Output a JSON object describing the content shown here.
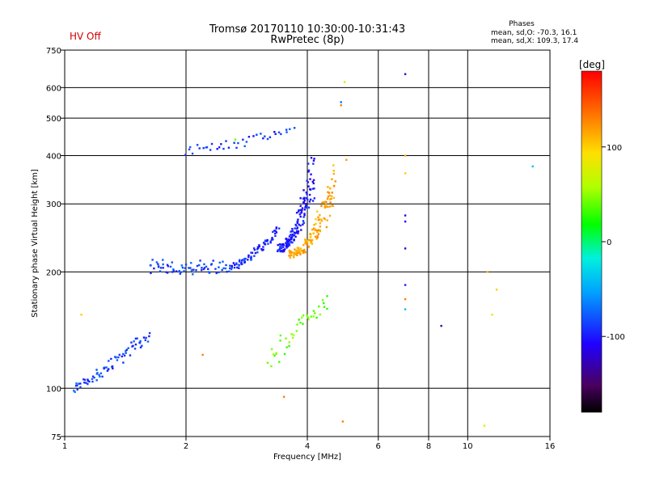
{
  "title_line1": "Tromsø 20170110 10:30:00-10:31:43",
  "title_line2": "RwPretec (8p)",
  "hv_status": "HV Off",
  "stats": {
    "heading": "Phases",
    "line_o": "mean, sd,O: -70.3, 16.1",
    "line_x": "mean, sd,X: 109.3, 17.4"
  },
  "colors": {
    "hv_status": "#d00000",
    "grid": "#000000",
    "axes": "#000000"
  },
  "chart_data": {
    "type": "scatter",
    "xlabel": "Frequency [MHz]",
    "ylabel": "Stationary phase Virtual Height [km]",
    "xscale": "log",
    "yscale": "log",
    "xlim": [
      1,
      16
    ],
    "ylim": [
      75,
      750
    ],
    "x_ticks": [
      1,
      2,
      4,
      6,
      8,
      10,
      16
    ],
    "y_ticks": [
      75,
      100,
      200,
      300,
      400,
      500,
      600,
      750
    ],
    "x_grid": [
      2,
      4,
      6,
      8,
      10
    ],
    "y_grid": [
      100,
      200,
      300,
      400,
      500,
      600
    ],
    "colorbar": {
      "label": "[deg]",
      "min": -180,
      "max": 180,
      "ticks": [
        100,
        0,
        -100
      ]
    },
    "segments": [
      {
        "name": "low-trace",
        "phase": -85,
        "x_range": [
          1.05,
          1.25
        ],
        "y_range": [
          97,
          112
        ],
        "count": 30
      },
      {
        "name": "low-trace-2",
        "phase": -90,
        "x_range": [
          1.25,
          1.62
        ],
        "y_range": [
          108,
          140
        ],
        "count": 45
      },
      {
        "name": "e-layer",
        "phase": -85,
        "x_range": [
          1.62,
          2.6
        ],
        "y_range": [
          200,
          212
        ],
        "count": 70
      },
      {
        "name": "f-rise",
        "phase": -95,
        "x_range": [
          2.6,
          3.4
        ],
        "y_range": [
          205,
          260
        ],
        "count": 70
      },
      {
        "name": "o-cusp",
        "phase": -100,
        "x_range": [
          3.4,
          4.15
        ],
        "y_range": [
          230,
          370
        ],
        "count": 150
      },
      {
        "name": "x-trace",
        "phase": 115,
        "x_range": [
          3.6,
          4.7
        ],
        "y_range": [
          222,
          340
        ],
        "count": 140
      },
      {
        "name": "upper-echo",
        "phase": -90,
        "x_range": [
          2.0,
          3.7
        ],
        "y_range": [
          400,
          470
        ],
        "count": 40
      },
      {
        "name": "mid-scatter",
        "phase": 40,
        "x_range": [
          3.2,
          4.5
        ],
        "y_range": [
          110,
          175
        ],
        "count": 40
      }
    ],
    "isolated_points": [
      {
        "x": 7.0,
        "y": 650,
        "phase": -120
      },
      {
        "x": 7.0,
        "y": 280,
        "phase": -110
      },
      {
        "x": 7.0,
        "y": 270,
        "phase": -110
      },
      {
        "x": 7.0,
        "y": 230,
        "phase": -120
      },
      {
        "x": 7.0,
        "y": 185,
        "phase": -100
      },
      {
        "x": 7.0,
        "y": 170,
        "phase": 130
      },
      {
        "x": 7.0,
        "y": 160,
        "phase": -40
      },
      {
        "x": 7.0,
        "y": 400,
        "phase": 110
      },
      {
        "x": 7.0,
        "y": 360,
        "phase": 100
      },
      {
        "x": 4.95,
        "y": 620,
        "phase": 60
      },
      {
        "x": 4.85,
        "y": 550,
        "phase": -70
      },
      {
        "x": 4.85,
        "y": 540,
        "phase": 130
      },
      {
        "x": 5.0,
        "y": 390,
        "phase": 120
      },
      {
        "x": 4.9,
        "y": 82,
        "phase": 130
      },
      {
        "x": 3.5,
        "y": 95,
        "phase": 130
      },
      {
        "x": 8.6,
        "y": 145,
        "phase": -130
      },
      {
        "x": 11.2,
        "y": 200,
        "phase": 110
      },
      {
        "x": 11.8,
        "y": 180,
        "phase": 100
      },
      {
        "x": 11.5,
        "y": 155,
        "phase": 90
      },
      {
        "x": 11.0,
        "y": 80,
        "phase": 80
      },
      {
        "x": 14.5,
        "y": 375,
        "phase": -40
      },
      {
        "x": 2.2,
        "y": 122,
        "phase": 130
      },
      {
        "x": 1.1,
        "y": 155,
        "phase": 100
      },
      {
        "x": 2.65,
        "y": 440,
        "phase": 40
      }
    ]
  }
}
